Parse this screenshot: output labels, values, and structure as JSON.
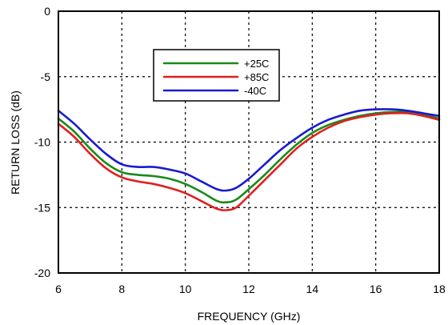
{
  "chart_data": {
    "type": "line",
    "title": "",
    "xlabel": "FREQUENCY (GHz)",
    "ylabel": "RETURN LOSS (dB)",
    "xlim": [
      6,
      18
    ],
    "ylim": [
      -20,
      0
    ],
    "xticks": [
      6,
      8,
      10,
      12,
      14,
      16,
      18
    ],
    "yticks": [
      0,
      -5,
      -10,
      -15,
      -20
    ],
    "grid": true,
    "legend": "top-center",
    "series": [
      {
        "name": "+25C",
        "color": "#1a8a1a",
        "x": [
          6.0,
          6.5,
          7.0,
          7.5,
          8.0,
          8.5,
          9.0,
          9.5,
          10.0,
          10.5,
          11.0,
          11.3,
          11.6,
          12.0,
          12.5,
          13.0,
          13.5,
          14.0,
          14.5,
          15.0,
          15.5,
          16.0,
          16.5,
          17.0,
          17.5,
          18.0
        ],
        "values": [
          -8.2,
          -9.2,
          -10.5,
          -11.6,
          -12.3,
          -12.5,
          -12.6,
          -12.8,
          -13.2,
          -13.8,
          -14.5,
          -14.6,
          -14.4,
          -13.6,
          -12.5,
          -11.3,
          -10.2,
          -9.3,
          -8.7,
          -8.3,
          -8.0,
          -7.8,
          -7.7,
          -7.7,
          -7.9,
          -8.2
        ]
      },
      {
        "name": "+85C",
        "color": "#e02020",
        "x": [
          6.0,
          6.5,
          7.0,
          7.5,
          8.0,
          8.5,
          9.0,
          9.5,
          10.0,
          10.5,
          11.0,
          11.3,
          11.6,
          12.0,
          12.5,
          13.0,
          13.5,
          14.0,
          14.5,
          15.0,
          15.5,
          16.0,
          16.5,
          17.0,
          17.5,
          18.0
        ],
        "values": [
          -8.6,
          -9.6,
          -10.9,
          -12.0,
          -12.7,
          -13.0,
          -13.2,
          -13.5,
          -13.9,
          -14.5,
          -15.1,
          -15.2,
          -15.0,
          -14.1,
          -12.9,
          -11.7,
          -10.5,
          -9.6,
          -8.9,
          -8.4,
          -8.1,
          -7.9,
          -7.8,
          -7.8,
          -8.0,
          -8.3
        ]
      },
      {
        "name": "-40C",
        "color": "#1a1ad0",
        "x": [
          6.0,
          6.5,
          7.0,
          7.5,
          8.0,
          8.5,
          9.0,
          9.5,
          10.0,
          10.5,
          11.0,
          11.3,
          11.6,
          12.0,
          12.5,
          13.0,
          13.5,
          14.0,
          14.5,
          15.0,
          15.5,
          16.0,
          16.5,
          17.0,
          17.5,
          18.0
        ],
        "values": [
          -7.6,
          -8.6,
          -9.8,
          -10.9,
          -11.7,
          -11.9,
          -11.9,
          -12.1,
          -12.4,
          -13.0,
          -13.6,
          -13.7,
          -13.5,
          -12.8,
          -11.7,
          -10.6,
          -9.7,
          -8.9,
          -8.3,
          -7.9,
          -7.6,
          -7.5,
          -7.5,
          -7.6,
          -7.8,
          -8.0
        ]
      }
    ]
  }
}
